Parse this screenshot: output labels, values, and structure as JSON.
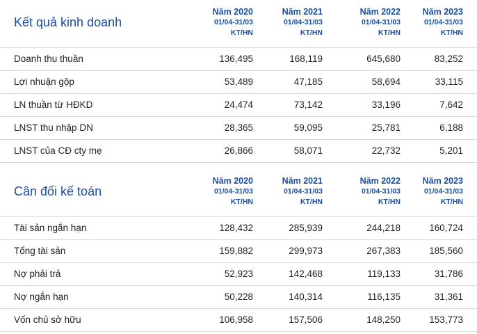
{
  "kqkd": {
    "title": "Kết quả kinh doanh",
    "columns": [
      {
        "year": "Năm 2020",
        "period": "01/04-31/03",
        "type": "KT/HN"
      },
      {
        "year": "Năm 2021",
        "period": "01/04-31/03",
        "type": "KT/HN"
      },
      {
        "year": "Năm 2022",
        "period": "01/04-31/03",
        "type": "KT/HN"
      },
      {
        "year": "Năm 2023",
        "period": "01/04-31/03",
        "type": "KT/HN"
      }
    ],
    "rows": [
      {
        "label": "Doanh thu thuần",
        "values": [
          "136,495",
          "168,119",
          "645,680",
          "83,252"
        ]
      },
      {
        "label": "Lợi nhuận gộp",
        "values": [
          "53,489",
          "47,185",
          "58,694",
          "33,115"
        ]
      },
      {
        "label": "LN thuần từ HĐKD",
        "values": [
          "24,474",
          "73,142",
          "33,196",
          "7,642"
        ]
      },
      {
        "label": "LNST thu nhập DN",
        "values": [
          "28,365",
          "59,095",
          "25,781",
          "6,188"
        ]
      },
      {
        "label": "LNST của CĐ cty mẹ",
        "values": [
          "26,866",
          "58,071",
          "22,732",
          "5,201"
        ]
      }
    ]
  },
  "cdkt": {
    "title": "Cân đối kế toán",
    "columns": [
      {
        "year": "Năm 2020",
        "period": "01/04-31/03",
        "type": "KT/HN"
      },
      {
        "year": "Năm 2021",
        "period": "01/04-31/03",
        "type": "KT/HN"
      },
      {
        "year": "Năm 2022",
        "period": "01/04-31/03",
        "type": "KT/HN"
      },
      {
        "year": "Năm 2023",
        "period": "01/04-31/03",
        "type": "KT/HN"
      }
    ],
    "rows": [
      {
        "label": "Tài sản ngắn hạn",
        "values": [
          "128,432",
          "285,939",
          "244,218",
          "160,724"
        ]
      },
      {
        "label": "Tổng tài sản",
        "values": [
          "159,882",
          "299,973",
          "267,383",
          "185,560"
        ]
      },
      {
        "label": "Nợ phải trả",
        "values": [
          "52,923",
          "142,468",
          "119,133",
          "31,786"
        ]
      },
      {
        "label": "Nợ ngắn hạn",
        "values": [
          "50,228",
          "140,314",
          "116,135",
          "31,361"
        ]
      },
      {
        "label": "Vốn chủ sở hữu",
        "values": [
          "106,958",
          "157,506",
          "148,250",
          "153,773"
        ]
      }
    ]
  }
}
